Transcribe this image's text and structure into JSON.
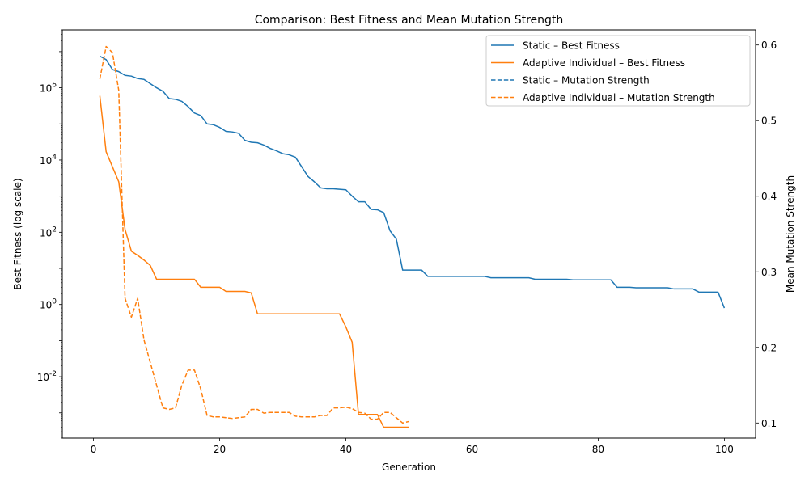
{
  "chart_data": {
    "type": "line",
    "title": "Comparison: Best Fitness and Mean Mutation Strength",
    "xlabel": "Generation",
    "ylabel": "Best Fitness (log scale)",
    "y2label": "Mean Mutation Strength",
    "xlim": [
      -4.95,
      104.95
    ],
    "xticks": [
      0,
      20,
      40,
      60,
      80,
      100
    ],
    "xtick_labels": [
      "0",
      "20",
      "40",
      "60",
      "80",
      "100"
    ],
    "yscale": "log",
    "ylim": [
      0.0002,
      40000000
    ],
    "yticks": [
      0.01,
      1,
      100,
      10000,
      1000000
    ],
    "ytick_labels": [
      "10^-2",
      "10^0",
      "10^2",
      "10^4",
      "10^6"
    ],
    "y2lim": [
      0.08,
      0.62
    ],
    "y2ticks": [
      0.1,
      0.2,
      0.3,
      0.4,
      0.5,
      0.6
    ],
    "y2tick_labels": [
      "0.1",
      "0.2",
      "0.3",
      "0.4",
      "0.5",
      "0.6"
    ],
    "grid": false,
    "legend_position": "upper right",
    "colors": {
      "static": "#1f77b4",
      "adaptive": "#ff7f0e"
    },
    "series": [
      {
        "name": "Static – Best Fitness",
        "axis": "left",
        "style": "solid",
        "color": "#1f77b4",
        "x": [
          1,
          2,
          3,
          4,
          5,
          6,
          7,
          8,
          9,
          10,
          11,
          12,
          13,
          14,
          15,
          16,
          17,
          18,
          19,
          20,
          21,
          22,
          23,
          24,
          25,
          26,
          27,
          28,
          29,
          30,
          31,
          32,
          33,
          34,
          35,
          36,
          37,
          38,
          39,
          40,
          41,
          42,
          43,
          44,
          45,
          46,
          47,
          48,
          49,
          50,
          51,
          52,
          53,
          54,
          55,
          56,
          57,
          58,
          59,
          60,
          61,
          62,
          63,
          64,
          65,
          66,
          67,
          68,
          69,
          70,
          71,
          72,
          73,
          74,
          75,
          76,
          77,
          78,
          79,
          80,
          81,
          82,
          83,
          84,
          85,
          86,
          87,
          88,
          89,
          90,
          91,
          92,
          93,
          94,
          95,
          96,
          97,
          98,
          99,
          100
        ],
        "y": [
          7500000,
          6000000,
          3200000,
          2800000,
          2200000,
          2100000,
          1800000,
          1700000,
          1300000,
          1000000,
          800000,
          500000,
          480000,
          420000,
          300000,
          200000,
          170000,
          100000,
          95000,
          80000,
          62000,
          60000,
          55000,
          35000,
          31000,
          30000,
          26000,
          21000,
          18000,
          15000,
          14000,
          12000,
          6500,
          3500,
          2500,
          1700,
          1600,
          1600,
          1550,
          1500,
          1000,
          700,
          700,
          430,
          420,
          350,
          110,
          65,
          9,
          9,
          9,
          9,
          6,
          6,
          6,
          6,
          6,
          6,
          6,
          6,
          6,
          6,
          5.5,
          5.5,
          5.5,
          5.5,
          5.5,
          5.5,
          5.5,
          5,
          5,
          5,
          5,
          5,
          5,
          4.8,
          4.8,
          4.8,
          4.8,
          4.8,
          4.8,
          4.8,
          3,
          3,
          3,
          2.9,
          2.9,
          2.9,
          2.9,
          2.9,
          2.9,
          2.7,
          2.7,
          2.7,
          2.7,
          2.2,
          2.2,
          2.2,
          2.2,
          0.8
        ]
      },
      {
        "name": "Adaptive Individual – Best Fitness",
        "axis": "left",
        "style": "solid",
        "color": "#ff7f0e",
        "x": [
          1,
          2,
          3,
          4,
          5,
          6,
          7,
          8,
          9,
          10,
          11,
          12,
          13,
          14,
          15,
          16,
          17,
          18,
          19,
          20,
          21,
          22,
          23,
          24,
          25,
          26,
          27,
          28,
          29,
          30,
          31,
          32,
          33,
          34,
          35,
          36,
          37,
          38,
          39,
          40,
          41,
          42,
          43,
          44,
          45,
          46,
          47,
          48,
          49,
          50
        ],
        "y": [
          600000,
          17000,
          6500,
          2500,
          120,
          30,
          23,
          17,
          12,
          5,
          5,
          5,
          5,
          5,
          5,
          5,
          3,
          3,
          3,
          3,
          2.3,
          2.3,
          2.3,
          2.3,
          2.1,
          0.55,
          0.55,
          0.55,
          0.55,
          0.55,
          0.55,
          0.55,
          0.55,
          0.55,
          0.55,
          0.55,
          0.55,
          0.55,
          0.55,
          0.24,
          0.09,
          0.0009,
          0.0009,
          0.0009,
          0.0009,
          0.0004,
          0.0004,
          0.0004,
          0.0004,
          0.0004
        ]
      },
      {
        "name": "Static – Mutation Strength",
        "axis": "right",
        "style": "dashed",
        "color": "#1f77b4",
        "x": [],
        "y": []
      },
      {
        "name": "Adaptive Individual – Mutation Strength",
        "axis": "right",
        "style": "dashed",
        "color": "#ff7f0e",
        "x": [
          1,
          2,
          3,
          4,
          5,
          6,
          7,
          8,
          9,
          10,
          11,
          12,
          13,
          14,
          15,
          16,
          17,
          18,
          19,
          20,
          21,
          22,
          23,
          24,
          25,
          26,
          27,
          28,
          29,
          30,
          31,
          32,
          33,
          34,
          35,
          36,
          37,
          38,
          39,
          40,
          41,
          42,
          43,
          44,
          45,
          46,
          47,
          48,
          49,
          50
        ],
        "y": [
          0.555,
          0.598,
          0.59,
          0.54,
          0.265,
          0.24,
          0.265,
          0.21,
          0.18,
          0.15,
          0.12,
          0.118,
          0.12,
          0.15,
          0.17,
          0.17,
          0.145,
          0.11,
          0.108,
          0.108,
          0.107,
          0.106,
          0.107,
          0.108,
          0.118,
          0.118,
          0.113,
          0.114,
          0.114,
          0.114,
          0.114,
          0.109,
          0.108,
          0.108,
          0.108,
          0.11,
          0.11,
          0.12,
          0.12,
          0.121,
          0.119,
          0.114,
          0.113,
          0.105,
          0.105,
          0.114,
          0.114,
          0.107,
          0.1,
          0.102
        ]
      }
    ]
  }
}
